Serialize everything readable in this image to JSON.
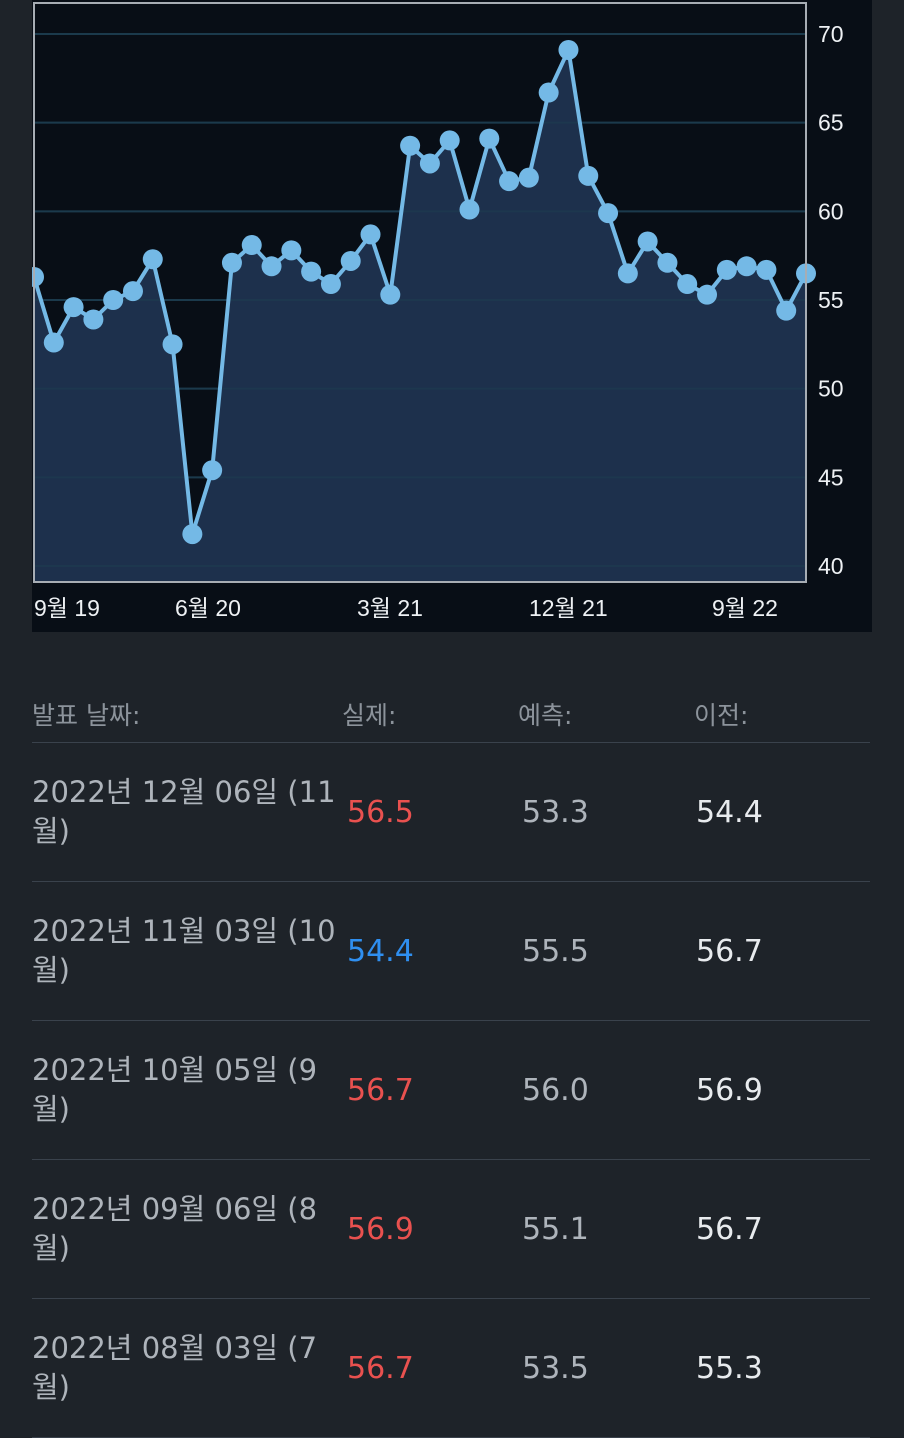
{
  "chart_data": {
    "type": "line",
    "x_labels": [
      "9월 19",
      "6월 20",
      "3월 21",
      "12월 21",
      "9월 22"
    ],
    "y_ticks": [
      40,
      45,
      50,
      55,
      60,
      65,
      70
    ],
    "ylim": [
      40,
      71
    ],
    "values": [
      56.3,
      52.6,
      54.6,
      53.9,
      55.0,
      55.5,
      57.3,
      52.5,
      41.8,
      45.4,
      57.1,
      58.1,
      56.9,
      57.8,
      56.6,
      55.9,
      57.2,
      58.7,
      55.3,
      63.7,
      62.7,
      64.0,
      60.1,
      64.1,
      61.7,
      61.9,
      66.7,
      69.1,
      62.0,
      59.9,
      56.5,
      58.3,
      57.1,
      55.9,
      55.3,
      56.7,
      56.9,
      56.7,
      54.4,
      56.5
    ],
    "grid": true,
    "area_fill": true,
    "colors": {
      "line": "#74b9e6",
      "area": "#1f3351",
      "plot_bg": "#080e16",
      "grid": "#1b3a4d"
    }
  },
  "table": {
    "headers": {
      "date": "발표 날짜:",
      "actual": "실제:",
      "forecast": "예측:",
      "previous": "이전:"
    },
    "rows": [
      {
        "date": "2022년 12월 06일 (11월)",
        "actual": "56.5",
        "actual_color": "#e9514f",
        "forecast": "53.3",
        "previous": "54.4"
      },
      {
        "date": "2022년 11월 03일 (10월)",
        "actual": "54.4",
        "actual_color": "#2f8ff0",
        "forecast": "55.5",
        "previous": "56.7"
      },
      {
        "date": "2022년 10월 05일 (9월)",
        "actual": "56.7",
        "actual_color": "#e9514f",
        "forecast": "56.0",
        "previous": "56.9"
      },
      {
        "date": "2022년 09월 06일 (8월)",
        "actual": "56.9",
        "actual_color": "#e9514f",
        "forecast": "55.1",
        "previous": "56.7"
      },
      {
        "date": "2022년 08월 03일 (7월)",
        "actual": "56.7",
        "actual_color": "#e9514f",
        "forecast": "53.5",
        "previous": "55.3"
      }
    ]
  }
}
